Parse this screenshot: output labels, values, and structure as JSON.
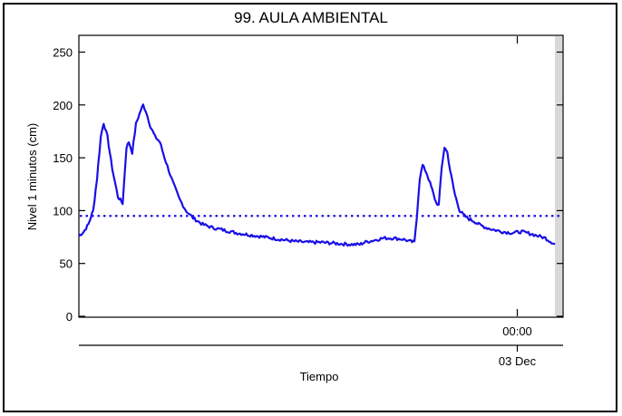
{
  "chart_data": {
    "type": "line",
    "title": "99. AULA AMBIENTAL",
    "ylabel": "Nivel 1 minutos (cm)",
    "xlabel": "Tiempo",
    "ylim": [
      0,
      265
    ],
    "yticks": [
      0,
      50,
      100,
      150,
      200,
      250
    ],
    "x_time_tick_label": "00:00",
    "x_date_tick_label": "03 Dec",
    "line_color": "#1a0fe6",
    "threshold": {
      "value": 95,
      "style": "dotted",
      "color": "#1a0fe6"
    },
    "x_range": [
      0,
      100
    ],
    "x_tick_position": 92.1,
    "series": [
      {
        "points": [
          [
            0,
            76
          ],
          [
            1,
            80
          ],
          [
            2,
            87
          ],
          [
            3,
            100
          ],
          [
            3.8,
            130
          ],
          [
            4.6,
            170
          ],
          [
            5.2,
            183
          ],
          [
            6,
            170
          ],
          [
            7,
            140
          ],
          [
            8.2,
            113
          ],
          [
            9.2,
            107
          ],
          [
            10,
            160
          ],
          [
            10.5,
            165
          ],
          [
            11.2,
            155
          ],
          [
            12,
            182
          ],
          [
            13,
            195
          ],
          [
            13.5,
            200
          ],
          [
            14.1,
            194
          ],
          [
            15,
            180
          ],
          [
            16,
            170
          ],
          [
            17,
            165
          ],
          [
            18,
            150
          ],
          [
            19.5,
            130
          ],
          [
            21,
            112
          ],
          [
            22.5,
            100
          ],
          [
            24,
            93
          ],
          [
            26,
            87
          ],
          [
            28,
            84
          ],
          [
            30,
            82
          ],
          [
            33,
            79
          ],
          [
            36,
            77
          ],
          [
            39,
            75
          ],
          [
            42,
            73
          ],
          [
            45,
            71
          ],
          [
            48,
            70
          ],
          [
            51,
            70
          ],
          [
            54,
            69
          ],
          [
            57,
            68
          ],
          [
            59,
            68
          ],
          [
            60,
            70
          ],
          [
            62,
            72
          ],
          [
            64,
            74
          ],
          [
            66,
            74
          ],
          [
            68,
            73
          ],
          [
            69.5,
            71
          ],
          [
            70.5,
            70
          ],
          [
            71,
            95
          ],
          [
            71.6,
            130
          ],
          [
            72.2,
            143
          ],
          [
            73,
            136
          ],
          [
            74,
            123
          ],
          [
            75,
            108
          ],
          [
            75.6,
            105
          ],
          [
            76.2,
            140
          ],
          [
            76.8,
            160
          ],
          [
            77.4,
            155
          ],
          [
            78,
            138
          ],
          [
            79,
            115
          ],
          [
            80,
            100
          ],
          [
            81,
            95
          ],
          [
            82,
            92
          ],
          [
            83,
            90
          ],
          [
            84,
            87
          ],
          [
            85.5,
            84
          ],
          [
            87,
            82
          ],
          [
            89,
            80
          ],
          [
            91,
            79
          ],
          [
            93,
            80
          ],
          [
            95,
            78
          ],
          [
            96.5,
            76
          ],
          [
            98,
            74
          ],
          [
            99,
            71
          ],
          [
            100,
            68
          ]
        ]
      }
    ]
  }
}
